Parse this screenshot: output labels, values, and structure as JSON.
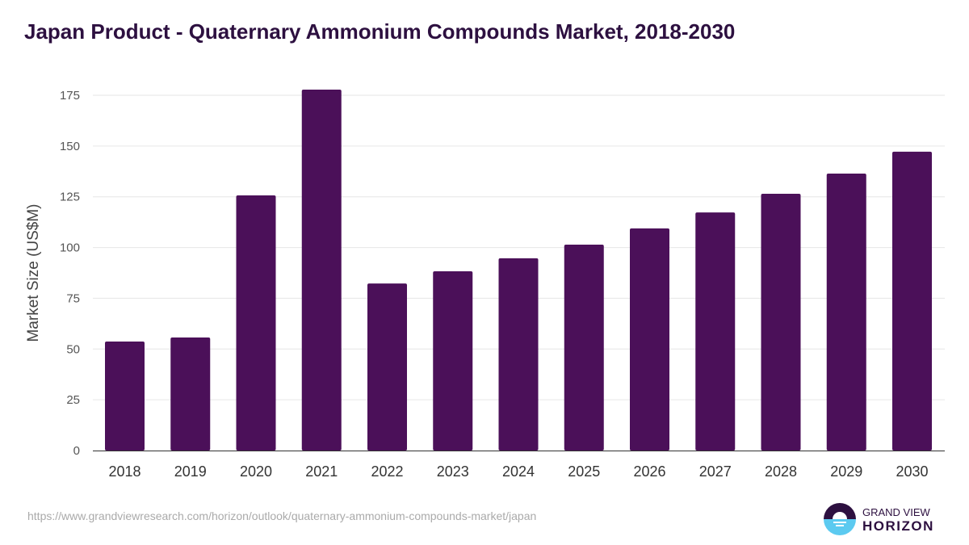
{
  "title": "Japan Product - Quaternary Ammonium Compounds Market, 2018-2030",
  "source": "https://www.grandviewresearch.com/horizon/outlook/quaternary-ammonium-compounds-market/japan",
  "logo": {
    "line1": "GRAND VIEW",
    "line2": "HORIZON"
  },
  "colors": {
    "bar": "#4b1059",
    "title": "#2d1040",
    "logo_dark": "#2d1040",
    "logo_light": "#5ccaf0"
  },
  "chart_data": {
    "type": "bar",
    "title": "Japan Product - Quaternary Ammonium Compounds Market, 2018-2030",
    "xlabel": "",
    "ylabel": "Market Size (US$M)",
    "ylim": [
      0,
      175
    ],
    "yticks": [
      0,
      25,
      50,
      75,
      100,
      125,
      150,
      175
    ],
    "grid": true,
    "categories": [
      "2018",
      "2019",
      "2020",
      "2021",
      "2022",
      "2023",
      "2024",
      "2025",
      "2026",
      "2027",
      "2028",
      "2029",
      "2030"
    ],
    "values": [
      53.7,
      55.7,
      125.7,
      177.8,
      82.3,
      88.3,
      94.7,
      101.4,
      109.4,
      117.3,
      126.5,
      136.4,
      147.2
    ]
  }
}
